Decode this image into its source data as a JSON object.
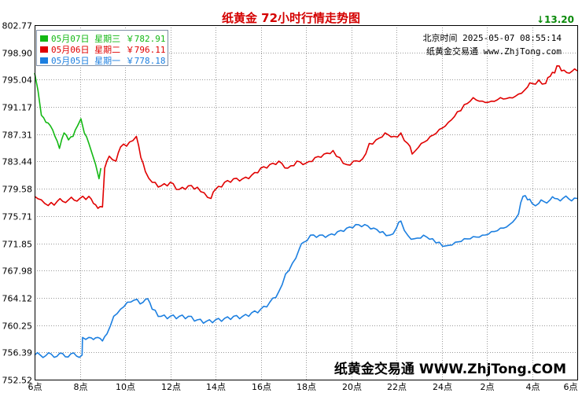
{
  "chart_data": {
    "type": "line",
    "title": "纸黄金 72小时行情走势图",
    "change_text": "13.20",
    "timestamp_label": "北京时间 2025-05-07 08:55:14",
    "source_label": "纸黄金交易通 www.ZhjTong.com",
    "watermark": "纸黄金交易通 WWW.ZhjTong.COM",
    "ylim": [
      752.52,
      802.77
    ],
    "y_ticks": [
      "802.77",
      "798.90",
      "795.04",
      "791.17",
      "787.31",
      "783.44",
      "779.58",
      "775.71",
      "771.85",
      "767.98",
      "764.12",
      "760.25",
      "756.39",
      "752.52"
    ],
    "x_ticks": [
      "6点",
      "8点",
      "10点",
      "12点",
      "14点",
      "16点",
      "18点",
      "20点",
      "22点",
      "24点",
      "2点",
      "4点",
      "6点"
    ],
    "x_range_hours": [
      6,
      30
    ],
    "series": [
      {
        "name": "05月07日 星期三 ￥782.91",
        "color": "#14b814",
        "points": [
          [
            6.0,
            796.0
          ],
          [
            6.15,
            793.5
          ],
          [
            6.3,
            790.0
          ],
          [
            6.5,
            789.0
          ],
          [
            6.7,
            788.5
          ],
          [
            6.9,
            787.0
          ],
          [
            7.1,
            785.3
          ],
          [
            7.3,
            787.5
          ],
          [
            7.5,
            786.5
          ],
          [
            7.7,
            787.0
          ],
          [
            7.9,
            788.5
          ],
          [
            8.05,
            789.5
          ],
          [
            8.2,
            787.5
          ],
          [
            8.4,
            786.0
          ],
          [
            8.55,
            784.5
          ],
          [
            8.7,
            783.0
          ],
          [
            8.85,
            781.0
          ],
          [
            8.93,
            782.5
          ]
        ]
      },
      {
        "name": "05月06日 星期二 ￥796.11",
        "color": "#e00000",
        "points": [
          [
            6.0,
            778.5
          ],
          [
            6.3,
            778.0
          ],
          [
            6.6,
            777.2
          ],
          [
            7.0,
            777.8
          ],
          [
            7.5,
            778.0
          ],
          [
            8.0,
            778.2
          ],
          [
            8.4,
            778.5
          ],
          [
            8.6,
            777.5
          ],
          [
            8.8,
            776.8
          ],
          [
            9.0,
            777.0
          ],
          [
            9.1,
            782.5
          ],
          [
            9.3,
            784.2
          ],
          [
            9.6,
            783.5
          ],
          [
            9.8,
            785.5
          ],
          [
            10.2,
            786.2
          ],
          [
            10.5,
            787.0
          ],
          [
            10.7,
            784.0
          ],
          [
            10.9,
            782.0
          ],
          [
            11.2,
            780.5
          ],
          [
            11.6,
            780.0
          ],
          [
            12.0,
            780.5
          ],
          [
            12.4,
            779.5
          ],
          [
            12.8,
            780.0
          ],
          [
            13.2,
            779.8
          ],
          [
            13.5,
            779.0
          ],
          [
            13.8,
            778.2
          ],
          [
            14.0,
            779.5
          ],
          [
            14.4,
            780.5
          ],
          [
            14.8,
            781.0
          ],
          [
            15.2,
            781.0
          ],
          [
            15.6,
            781.5
          ],
          [
            16.0,
            782.5
          ],
          [
            16.4,
            783.0
          ],
          [
            16.8,
            783.5
          ],
          [
            17.2,
            782.5
          ],
          [
            17.6,
            783.5
          ],
          [
            18.0,
            783.2
          ],
          [
            18.4,
            784.0
          ],
          [
            18.8,
            784.5
          ],
          [
            19.2,
            785.0
          ],
          [
            19.5,
            784.0
          ],
          [
            19.8,
            783.0
          ],
          [
            20.1,
            783.5
          ],
          [
            20.5,
            783.8
          ],
          [
            20.8,
            786.0
          ],
          [
            21.1,
            786.5
          ],
          [
            21.5,
            787.5
          ],
          [
            21.9,
            787.0
          ],
          [
            22.2,
            787.5
          ],
          [
            22.5,
            786.0
          ],
          [
            22.7,
            784.5
          ],
          [
            22.85,
            785.0
          ],
          [
            23.1,
            786.0
          ],
          [
            23.5,
            787.0
          ],
          [
            23.9,
            788.0
          ],
          [
            24.3,
            789.0
          ],
          [
            24.7,
            790.5
          ],
          [
            25.0,
            791.5
          ],
          [
            25.4,
            792.5
          ],
          [
            25.8,
            792.0
          ],
          [
            26.2,
            792.0
          ],
          [
            26.6,
            792.5
          ],
          [
            27.0,
            792.5
          ],
          [
            27.4,
            793.0
          ],
          [
            27.8,
            794.0
          ],
          [
            28.0,
            794.5
          ],
          [
            28.3,
            795.0
          ],
          [
            28.6,
            794.5
          ],
          [
            28.8,
            795.5
          ],
          [
            29.0,
            796.0
          ],
          [
            29.1,
            797.0
          ],
          [
            29.3,
            796.3
          ],
          [
            30.0,
            796.3
          ]
        ]
      },
      {
        "name": "05月05日 星期一 ￥778.18",
        "color": "#1c7fe0",
        "points": [
          [
            6.0,
            756.0
          ],
          [
            8.1,
            756.0
          ],
          [
            8.12,
            758.5
          ],
          [
            8.4,
            758.5
          ],
          [
            8.6,
            758.2
          ],
          [
            8.8,
            758.5
          ],
          [
            9.0,
            758.0
          ],
          [
            9.2,
            759.0
          ],
          [
            9.5,
            761.5
          ],
          [
            9.8,
            762.5
          ],
          [
            10.1,
            763.5
          ],
          [
            10.4,
            763.8
          ],
          [
            10.8,
            763.5
          ],
          [
            11.0,
            764.0
          ],
          [
            11.2,
            762.5
          ],
          [
            11.6,
            761.5
          ],
          [
            12.0,
            761.5
          ],
          [
            12.4,
            761.5
          ],
          [
            12.8,
            761.5
          ],
          [
            13.2,
            761.0
          ],
          [
            13.6,
            760.8
          ],
          [
            14.0,
            761.0
          ],
          [
            14.4,
            761.2
          ],
          [
            14.8,
            761.5
          ],
          [
            15.2,
            761.5
          ],
          [
            15.6,
            762.0
          ],
          [
            16.0,
            762.5
          ],
          [
            16.4,
            763.5
          ],
          [
            16.8,
            765.0
          ],
          [
            17.1,
            767.5
          ],
          [
            17.4,
            769.0
          ],
          [
            17.7,
            771.0
          ],
          [
            17.9,
            772.0
          ],
          [
            18.2,
            773.0
          ],
          [
            18.6,
            773.0
          ],
          [
            19.0,
            773.0
          ],
          [
            19.4,
            773.5
          ],
          [
            19.8,
            774.0
          ],
          [
            20.2,
            774.5
          ],
          [
            20.6,
            774.5
          ],
          [
            21.0,
            774.0
          ],
          [
            21.4,
            773.5
          ],
          [
            21.7,
            773.0
          ],
          [
            22.0,
            774.0
          ],
          [
            22.2,
            775.0
          ],
          [
            22.5,
            773.0
          ],
          [
            22.8,
            772.5
          ],
          [
            23.2,
            773.0
          ],
          [
            23.6,
            772.5
          ],
          [
            23.9,
            772.0
          ],
          [
            24.2,
            771.5
          ],
          [
            24.6,
            772.0
          ],
          [
            25.0,
            772.5
          ],
          [
            25.4,
            772.8
          ],
          [
            25.8,
            773.0
          ],
          [
            26.2,
            773.5
          ],
          [
            26.6,
            774.0
          ],
          [
            27.0,
            774.5
          ],
          [
            27.4,
            776.0
          ],
          [
            27.6,
            778.5
          ],
          [
            27.8,
            778.0
          ],
          [
            28.0,
            777.5
          ],
          [
            28.3,
            777.5
          ],
          [
            28.5,
            777.8
          ],
          [
            28.8,
            778.0
          ],
          [
            29.0,
            778.2
          ],
          [
            30.0,
            778.2
          ]
        ]
      }
    ]
  }
}
